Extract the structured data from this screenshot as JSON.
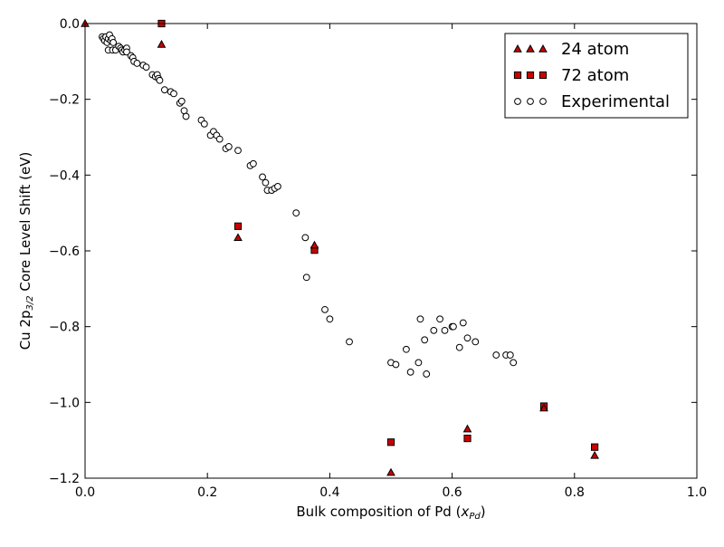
{
  "chart_data": {
    "type": "scatter",
    "xlabel": "Bulk composition of Pd (x_Pd)",
    "xlabel_main": "Bulk composition of Pd (",
    "xlabel_var": "x",
    "xlabel_sub": "Pd",
    "xlabel_close": ")",
    "ylabel": "Cu 2p3/2 Core Level Shift (eV)",
    "ylabel_prefix": "Cu 2p",
    "ylabel_sub": "3/2",
    "ylabel_suffix": " Core Level Shift (eV)",
    "xlim": [
      0.0,
      1.0
    ],
    "ylim": [
      -1.2,
      0.0
    ],
    "xticks": [
      0.0,
      0.2,
      0.4,
      0.6,
      0.8,
      1.0
    ],
    "xtick_labels": [
      "0.0",
      "0.2",
      "0.4",
      "0.6",
      "0.8",
      "1.0"
    ],
    "yticks": [
      0.0,
      -0.2,
      -0.4,
      -0.6,
      -0.8,
      -1.0,
      -1.2
    ],
    "ytick_labels": [
      "0.0",
      "−0.2",
      "−0.4",
      "−0.6",
      "−0.8",
      "−1.0",
      "−1.2"
    ],
    "grid": false,
    "legend_position": "top-right",
    "series": [
      {
        "name": "24 atom",
        "marker": "triangle",
        "color": "#cc0000",
        "points": [
          [
            0.0,
            0.0
          ],
          [
            0.125,
            -0.055
          ],
          [
            0.25,
            -0.565
          ],
          [
            0.375,
            -0.585
          ],
          [
            0.5,
            -1.185
          ],
          [
            0.625,
            -1.07
          ],
          [
            0.75,
            -1.015
          ],
          [
            0.833,
            -1.14
          ]
        ]
      },
      {
        "name": "72 atom",
        "marker": "square",
        "color": "#cc0000",
        "points": [
          [
            0.125,
            0.0
          ],
          [
            0.25,
            -0.535
          ],
          [
            0.375,
            -0.598
          ],
          [
            0.5,
            -1.105
          ],
          [
            0.625,
            -1.095
          ],
          [
            0.75,
            -1.01
          ],
          [
            0.833,
            -1.118
          ]
        ]
      },
      {
        "name": "Experimental",
        "marker": "circle",
        "color": "#ffffff",
        "points": [
          [
            0.028,
            -0.035
          ],
          [
            0.03,
            -0.04
          ],
          [
            0.032,
            -0.045
          ],
          [
            0.034,
            -0.035
          ],
          [
            0.036,
            -0.05
          ],
          [
            0.038,
            -0.04
          ],
          [
            0.04,
            -0.03
          ],
          [
            0.042,
            -0.045
          ],
          [
            0.044,
            -0.04
          ],
          [
            0.046,
            -0.05
          ],
          [
            0.038,
            -0.07
          ],
          [
            0.045,
            -0.07
          ],
          [
            0.05,
            -0.07
          ],
          [
            0.055,
            -0.06
          ],
          [
            0.058,
            -0.065
          ],
          [
            0.06,
            -0.07
          ],
          [
            0.062,
            -0.075
          ],
          [
            0.065,
            -0.07
          ],
          [
            0.068,
            -0.065
          ],
          [
            0.068,
            -0.075
          ],
          [
            0.075,
            -0.085
          ],
          [
            0.078,
            -0.09
          ],
          [
            0.08,
            -0.1
          ],
          [
            0.085,
            -0.105
          ],
          [
            0.095,
            -0.11
          ],
          [
            0.1,
            -0.115
          ],
          [
            0.11,
            -0.135
          ],
          [
            0.115,
            -0.14
          ],
          [
            0.118,
            -0.135
          ],
          [
            0.12,
            -0.145
          ],
          [
            0.122,
            -0.15
          ],
          [
            0.13,
            -0.175
          ],
          [
            0.14,
            -0.18
          ],
          [
            0.145,
            -0.185
          ],
          [
            0.155,
            -0.21
          ],
          [
            0.158,
            -0.205
          ],
          [
            0.162,
            -0.23
          ],
          [
            0.165,
            -0.245
          ],
          [
            0.19,
            -0.255
          ],
          [
            0.195,
            -0.265
          ],
          [
            0.205,
            -0.295
          ],
          [
            0.21,
            -0.285
          ],
          [
            0.215,
            -0.295
          ],
          [
            0.22,
            -0.305
          ],
          [
            0.23,
            -0.33
          ],
          [
            0.235,
            -0.325
          ],
          [
            0.25,
            -0.335
          ],
          [
            0.27,
            -0.375
          ],
          [
            0.275,
            -0.37
          ],
          [
            0.29,
            -0.405
          ],
          [
            0.295,
            -0.42
          ],
          [
            0.298,
            -0.44
          ],
          [
            0.305,
            -0.44
          ],
          [
            0.31,
            -0.435
          ],
          [
            0.315,
            -0.43
          ],
          [
            0.345,
            -0.5
          ],
          [
            0.36,
            -0.565
          ],
          [
            0.362,
            -0.67
          ],
          [
            0.392,
            -0.755
          ],
          [
            0.4,
            -0.78
          ],
          [
            0.432,
            -0.84
          ],
          [
            0.5,
            -0.895
          ],
          [
            0.508,
            -0.9
          ],
          [
            0.525,
            -0.86
          ],
          [
            0.532,
            -0.92
          ],
          [
            0.545,
            -0.895
          ],
          [
            0.548,
            -0.78
          ],
          [
            0.555,
            -0.835
          ],
          [
            0.558,
            -0.925
          ],
          [
            0.57,
            -0.81
          ],
          [
            0.58,
            -0.78
          ],
          [
            0.588,
            -0.81
          ],
          [
            0.6,
            -0.8
          ],
          [
            0.602,
            -0.8
          ],
          [
            0.612,
            -0.855
          ],
          [
            0.618,
            -0.79
          ],
          [
            0.625,
            -0.83
          ],
          [
            0.638,
            -0.84
          ],
          [
            0.672,
            -0.875
          ],
          [
            0.688,
            -0.875
          ],
          [
            0.695,
            -0.875
          ],
          [
            0.7,
            -0.895
          ]
        ]
      }
    ]
  }
}
